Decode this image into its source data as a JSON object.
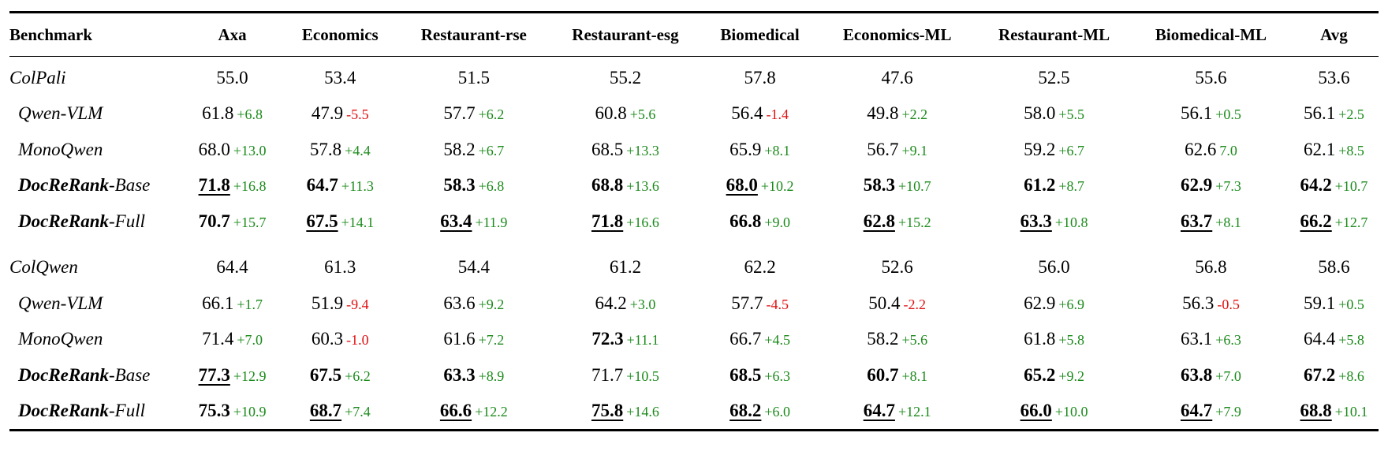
{
  "table": {
    "headers": [
      "Benchmark",
      "Axa",
      "Economics",
      "Restaurant-rse",
      "Restaurant-esg",
      "Biomedical",
      "Economics-ML",
      "Restaurant-ML",
      "Biomedical-ML",
      "Avg"
    ],
    "colors": {
      "positive": "#1a8a1a",
      "negative": "#e01010"
    },
    "groups": [
      {
        "rows": [
          {
            "label": "ColPali",
            "indent": false,
            "cells": [
              {
                "v": "55.0"
              },
              {
                "v": "53.4"
              },
              {
                "v": "51.5"
              },
              {
                "v": "55.2"
              },
              {
                "v": "57.8"
              },
              {
                "v": "47.6"
              },
              {
                "v": "52.5"
              },
              {
                "v": "55.6"
              },
              {
                "v": "53.6"
              }
            ]
          },
          {
            "label": "Qwen-VLM",
            "indent": true,
            "cells": [
              {
                "v": "61.8",
                "d": "+6.8",
                "s": "pos"
              },
              {
                "v": "47.9",
                "d": "-5.5",
                "s": "neg"
              },
              {
                "v": "57.7",
                "d": "+6.2",
                "s": "pos"
              },
              {
                "v": "60.8",
                "d": "+5.6",
                "s": "pos"
              },
              {
                "v": "56.4",
                "d": "-1.4",
                "s": "neg"
              },
              {
                "v": "49.8",
                "d": "+2.2",
                "s": "pos"
              },
              {
                "v": "58.0",
                "d": "+5.5",
                "s": "pos"
              },
              {
                "v": "56.1",
                "d": "+0.5",
                "s": "pos"
              },
              {
                "v": "56.1",
                "d": "+2.5",
                "s": "pos"
              }
            ]
          },
          {
            "label": "MonoQwen",
            "indent": true,
            "cells": [
              {
                "v": "68.0",
                "d": "+13.0",
                "s": "pos"
              },
              {
                "v": "57.8",
                "d": "+4.4",
                "s": "pos"
              },
              {
                "v": "58.2",
                "d": "+6.7",
                "s": "pos"
              },
              {
                "v": "68.5",
                "d": "+13.3",
                "s": "pos"
              },
              {
                "v": "65.9",
                "d": "+8.1",
                "s": "pos"
              },
              {
                "v": "56.7",
                "d": "+9.1",
                "s": "pos"
              },
              {
                "v": "59.2",
                "d": "+6.7",
                "s": "pos"
              },
              {
                "v": "62.6",
                "d": "7.0",
                "s": "pos"
              },
              {
                "v": "62.1",
                "d": "+8.5",
                "s": "pos"
              }
            ]
          },
          {
            "label_bold": "DocReRank",
            "label_rest": "-Base",
            "indent": true,
            "cells": [
              {
                "v": "71.8",
                "b": true,
                "u": true,
                "d": "+16.8",
                "s": "pos"
              },
              {
                "v": "64.7",
                "b": true,
                "d": "+11.3",
                "s": "pos"
              },
              {
                "v": "58.3",
                "b": true,
                "d": "+6.8",
                "s": "pos"
              },
              {
                "v": "68.8",
                "b": true,
                "d": "+13.6",
                "s": "pos"
              },
              {
                "v": "68.0",
                "b": true,
                "u": true,
                "d": "+10.2",
                "s": "pos"
              },
              {
                "v": "58.3",
                "b": true,
                "d": "+10.7",
                "s": "pos"
              },
              {
                "v": "61.2",
                "b": true,
                "d": "+8.7",
                "s": "pos"
              },
              {
                "v": "62.9",
                "b": true,
                "d": "+7.3",
                "s": "pos"
              },
              {
                "v": "64.2",
                "b": true,
                "d": "+10.7",
                "s": "pos"
              }
            ]
          },
          {
            "label_bold": "DocReRank",
            "label_rest": "-Full",
            "indent": true,
            "cells": [
              {
                "v": "70.7",
                "b": true,
                "d": "+15.7",
                "s": "pos"
              },
              {
                "v": "67.5",
                "b": true,
                "u": true,
                "d": "+14.1",
                "s": "pos"
              },
              {
                "v": "63.4",
                "b": true,
                "u": true,
                "d": "+11.9",
                "s": "pos"
              },
              {
                "v": "71.8",
                "b": true,
                "u": true,
                "d": "+16.6",
                "s": "pos"
              },
              {
                "v": "66.8",
                "b": true,
                "d": "+9.0",
                "s": "pos"
              },
              {
                "v": "62.8",
                "b": true,
                "u": true,
                "d": "+15.2",
                "s": "pos"
              },
              {
                "v": "63.3",
                "b": true,
                "u": true,
                "d": "+10.8",
                "s": "pos"
              },
              {
                "v": "63.7",
                "b": true,
                "u": true,
                "d": "+8.1",
                "s": "pos"
              },
              {
                "v": "66.2",
                "b": true,
                "u": true,
                "d": "+12.7",
                "s": "pos"
              }
            ]
          }
        ]
      },
      {
        "rows": [
          {
            "label": "ColQwen",
            "indent": false,
            "cells": [
              {
                "v": "64.4"
              },
              {
                "v": "61.3"
              },
              {
                "v": "54.4"
              },
              {
                "v": "61.2"
              },
              {
                "v": "62.2"
              },
              {
                "v": "52.6"
              },
              {
                "v": "56.0"
              },
              {
                "v": "56.8"
              },
              {
                "v": "58.6"
              }
            ]
          },
          {
            "label": "Qwen-VLM",
            "indent": true,
            "cells": [
              {
                "v": "66.1",
                "d": "+1.7",
                "s": "pos"
              },
              {
                "v": "51.9",
                "d": "-9.4",
                "s": "neg"
              },
              {
                "v": "63.6",
                "d": "+9.2",
                "s": "pos"
              },
              {
                "v": "64.2",
                "d": "+3.0",
                "s": "pos"
              },
              {
                "v": "57.7",
                "d": "-4.5",
                "s": "neg"
              },
              {
                "v": "50.4",
                "d": "-2.2",
                "s": "neg"
              },
              {
                "v": "62.9",
                "d": "+6.9",
                "s": "pos"
              },
              {
                "v": "56.3",
                "d": "-0.5",
                "s": "neg"
              },
              {
                "v": "59.1",
                "d": "+0.5",
                "s": "pos"
              }
            ]
          },
          {
            "label": "MonoQwen",
            "indent": true,
            "cells": [
              {
                "v": "71.4",
                "d": "+7.0",
                "s": "pos"
              },
              {
                "v": "60.3",
                "d": "-1.0",
                "s": "neg"
              },
              {
                "v": "61.6",
                "d": "+7.2",
                "s": "pos"
              },
              {
                "v": "72.3",
                "b": true,
                "d": "+11.1",
                "s": "pos"
              },
              {
                "v": "66.7",
                "d": "+4.5",
                "s": "pos"
              },
              {
                "v": "58.2",
                "d": "+5.6",
                "s": "pos"
              },
              {
                "v": "61.8",
                "d": "+5.8",
                "s": "pos"
              },
              {
                "v": "63.1",
                "d": "+6.3",
                "s": "pos"
              },
              {
                "v": "64.4",
                "d": "+5.8",
                "s": "pos"
              }
            ]
          },
          {
            "label_bold": "DocReRank",
            "label_rest": "-Base",
            "indent": true,
            "cells": [
              {
                "v": "77.3",
                "b": true,
                "u": true,
                "d": "+12.9",
                "s": "pos"
              },
              {
                "v": "67.5",
                "b": true,
                "d": "+6.2",
                "s": "pos"
              },
              {
                "v": "63.3",
                "b": true,
                "d": "+8.9",
                "s": "pos"
              },
              {
                "v": "71.7",
                "d": "+10.5",
                "s": "pos"
              },
              {
                "v": "68.5",
                "b": true,
                "d": "+6.3",
                "s": "pos"
              },
              {
                "v": "60.7",
                "b": true,
                "d": "+8.1",
                "s": "pos"
              },
              {
                "v": "65.2",
                "b": true,
                "d": "+9.2",
                "s": "pos"
              },
              {
                "v": "63.8",
                "b": true,
                "d": "+7.0",
                "s": "pos"
              },
              {
                "v": "67.2",
                "b": true,
                "d": "+8.6",
                "s": "pos"
              }
            ]
          },
          {
            "label_bold": "DocReRank",
            "label_rest": "-Full",
            "indent": true,
            "cells": [
              {
                "v": "75.3",
                "b": true,
                "d": "+10.9",
                "s": "pos"
              },
              {
                "v": "68.7",
                "b": true,
                "u": true,
                "d": "+7.4",
                "s": "pos"
              },
              {
                "v": "66.6",
                "b": true,
                "u": true,
                "d": "+12.2",
                "s": "pos"
              },
              {
                "v": "75.8",
                "b": true,
                "u": true,
                "d": "+14.6",
                "s": "pos"
              },
              {
                "v": "68.2",
                "b": true,
                "u": true,
                "d": "+6.0",
                "s": "pos"
              },
              {
                "v": "64.7",
                "b": true,
                "u": true,
                "d": "+12.1",
                "s": "pos"
              },
              {
                "v": "66.0",
                "b": true,
                "u": true,
                "d": "+10.0",
                "s": "pos"
              },
              {
                "v": "64.7",
                "b": true,
                "u": true,
                "d": "+7.9",
                "s": "pos"
              },
              {
                "v": "68.8",
                "b": true,
                "u": true,
                "d": "+10.1",
                "s": "pos"
              }
            ]
          }
        ]
      }
    ]
  }
}
